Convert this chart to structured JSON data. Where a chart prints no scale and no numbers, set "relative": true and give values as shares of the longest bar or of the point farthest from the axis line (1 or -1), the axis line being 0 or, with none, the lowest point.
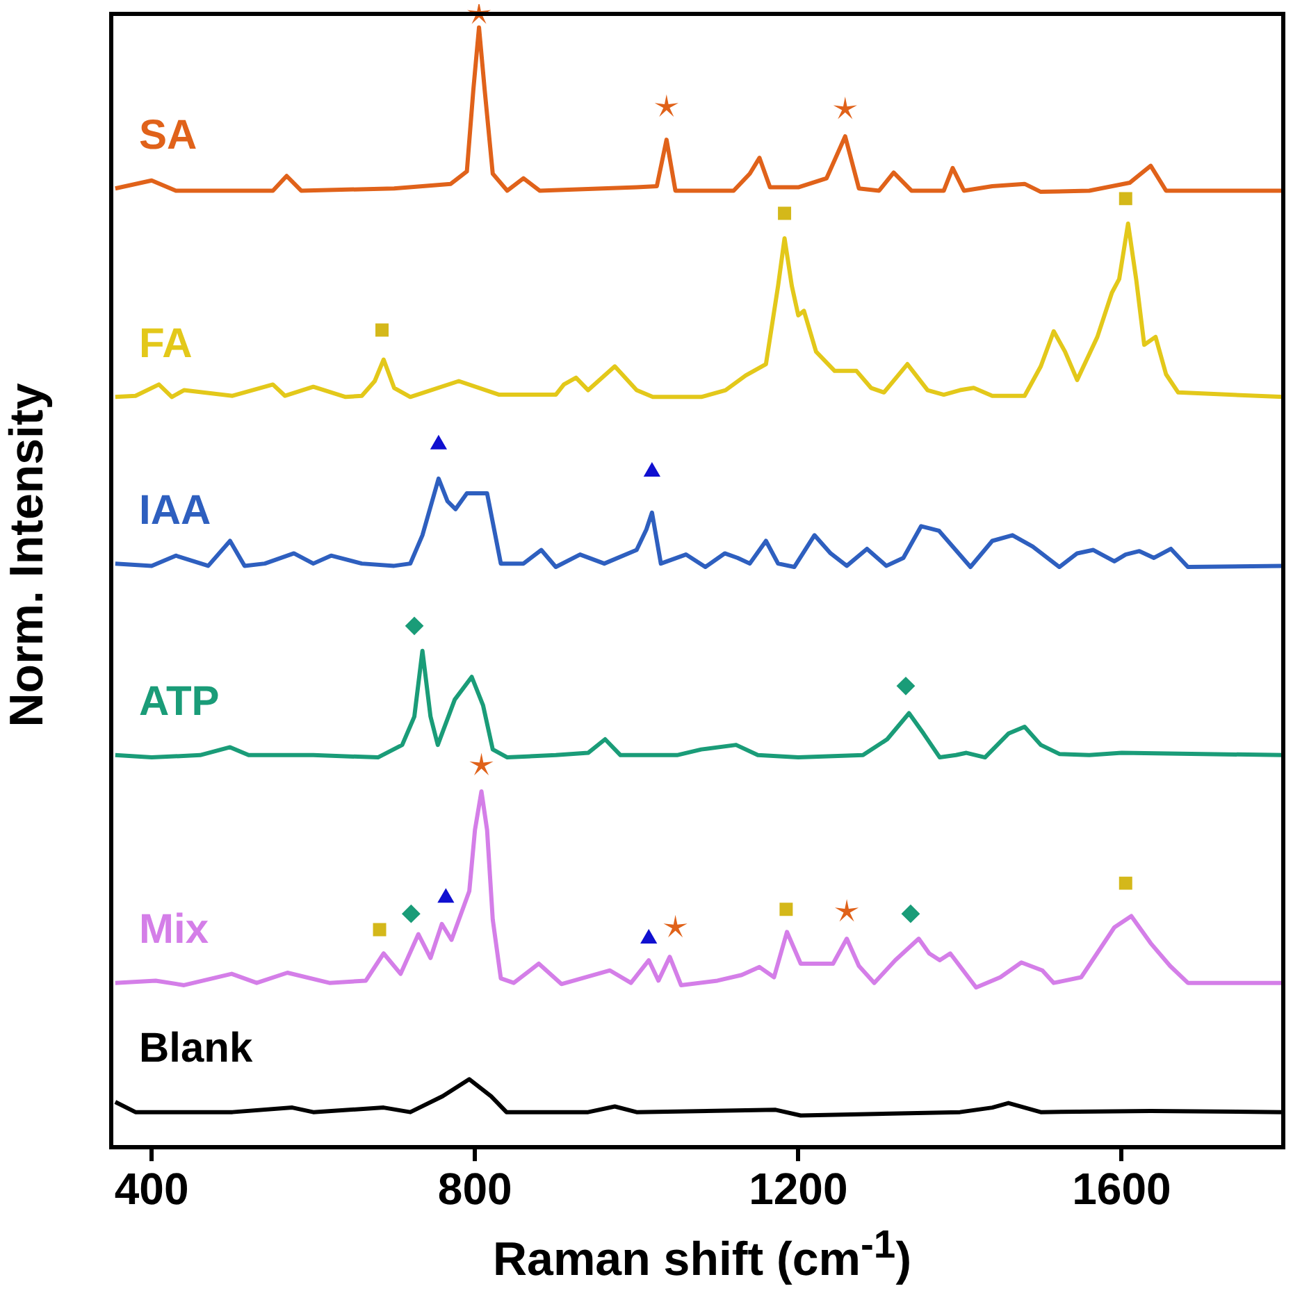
{
  "chart_data": {
    "type": "line",
    "relative": true,
    "xlabel": "Raman shift (cm$^{-1}$)",
    "ylabel": "Norm. Intensity",
    "xlim": [
      350,
      1800
    ],
    "xticks": [
      400,
      800,
      1200,
      1600
    ],
    "grid": false,
    "legend": false,
    "marker": "none",
    "line_style": "solid",
    "series": [
      {
        "name": "SA",
        "color": "#e0621a",
        "x": [
          355,
          400,
          430,
          550,
          567,
          585,
          700,
          770,
          790,
          798,
          805,
          812,
          822,
          840,
          860,
          880,
          1000,
          1025,
          1037,
          1048,
          1120,
          1140,
          1152,
          1165,
          1200,
          1235,
          1258,
          1275,
          1300,
          1318,
          1340,
          1380,
          1391,
          1405,
          1440,
          1480,
          1500,
          1560,
          1610,
          1636,
          1655,
          1800
        ],
        "values": [
          0.846,
          0.853,
          0.844,
          0.844,
          0.857,
          0.844,
          0.846,
          0.85,
          0.861,
          0.933,
          0.988,
          0.933,
          0.859,
          0.844,
          0.855,
          0.844,
          0.847,
          0.848,
          0.889,
          0.844,
          0.844,
          0.859,
          0.873,
          0.847,
          0.847,
          0.855,
          0.892,
          0.846,
          0.844,
          0.86,
          0.844,
          0.844,
          0.864,
          0.844,
          0.848,
          0.85,
          0.843,
          0.844,
          0.851,
          0.866,
          0.844,
          0.844
        ]
      },
      {
        "name": "FA",
        "color": "#e3c81a",
        "x": [
          355,
          380,
          409,
          425,
          440,
          500,
          550,
          565,
          600,
          640,
          660,
          676,
          687,
          700,
          720,
          780,
          830,
          900,
          910,
          925,
          940,
          973,
          1000,
          1020,
          1080,
          1110,
          1135,
          1160,
          1175,
          1183,
          1192,
          1200,
          1207,
          1222,
          1245,
          1272,
          1290,
          1306,
          1335,
          1360,
          1380,
          1400,
          1417,
          1440,
          1480,
          1500,
          1516,
          1530,
          1545,
          1570,
          1588,
          1597,
          1608,
          1618,
          1628,
          1642,
          1655,
          1670,
          1800
        ],
        "values": [
          0.662,
          0.663,
          0.673,
          0.662,
          0.668,
          0.663,
          0.673,
          0.663,
          0.671,
          0.662,
          0.663,
          0.676,
          0.695,
          0.67,
          0.662,
          0.676,
          0.664,
          0.664,
          0.673,
          0.679,
          0.668,
          0.689,
          0.668,
          0.662,
          0.662,
          0.668,
          0.681,
          0.691,
          0.76,
          0.802,
          0.76,
          0.734,
          0.738,
          0.702,
          0.685,
          0.685,
          0.67,
          0.666,
          0.691,
          0.668,
          0.664,
          0.668,
          0.67,
          0.663,
          0.663,
          0.689,
          0.72,
          0.702,
          0.677,
          0.715,
          0.754,
          0.766,
          0.815,
          0.766,
          0.708,
          0.715,
          0.682,
          0.666,
          0.662
        ]
      },
      {
        "name": "IAA",
        "color": "#2e5fbf",
        "x": [
          355,
          400,
          430,
          470,
          497,
          515,
          540,
          576,
          600,
          622,
          660,
          700,
          720,
          735,
          755,
          766,
          776,
          790,
          815,
          832,
          860,
          882,
          900,
          930,
          960,
          1000,
          1012,
          1019,
          1030,
          1061,
          1085,
          1109,
          1125,
          1140,
          1160,
          1175,
          1195,
          1220,
          1240,
          1260,
          1285,
          1309,
          1330,
          1352,
          1374,
          1413,
          1440,
          1465,
          1490,
          1523,
          1545,
          1565,
          1591,
          1605,
          1622,
          1640,
          1661,
          1682,
          1800
        ],
        "values": [
          0.515,
          0.513,
          0.522,
          0.513,
          0.535,
          0.513,
          0.515,
          0.524,
          0.515,
          0.522,
          0.515,
          0.513,
          0.515,
          0.54,
          0.59,
          0.57,
          0.563,
          0.577,
          0.577,
          0.515,
          0.515,
          0.527,
          0.512,
          0.523,
          0.515,
          0.527,
          0.545,
          0.56,
          0.515,
          0.523,
          0.512,
          0.524,
          0.52,
          0.515,
          0.535,
          0.515,
          0.512,
          0.54,
          0.524,
          0.513,
          0.528,
          0.513,
          0.52,
          0.548,
          0.544,
          0.512,
          0.535,
          0.54,
          0.53,
          0.512,
          0.524,
          0.527,
          0.517,
          0.523,
          0.526,
          0.52,
          0.528,
          0.512,
          0.513
        ]
      },
      {
        "name": "ATP",
        "color": "#1a9c78",
        "x": [
          355,
          400,
          460,
          497,
          520,
          600,
          680,
          710,
          725,
          735,
          745,
          754,
          775,
          796,
          810,
          822,
          840,
          900,
          940,
          961,
          980,
          1050,
          1080,
          1123,
          1150,
          1200,
          1280,
          1310,
          1337,
          1355,
          1375,
          1395,
          1408,
          1431,
          1460,
          1480,
          1500,
          1523,
          1560,
          1600,
          1800
        ],
        "values": [
          0.346,
          0.344,
          0.346,
          0.353,
          0.346,
          0.346,
          0.344,
          0.355,
          0.38,
          0.438,
          0.38,
          0.355,
          0.395,
          0.415,
          0.39,
          0.351,
          0.344,
          0.346,
          0.348,
          0.36,
          0.346,
          0.346,
          0.351,
          0.355,
          0.346,
          0.344,
          0.346,
          0.36,
          0.383,
          0.365,
          0.344,
          0.346,
          0.348,
          0.344,
          0.365,
          0.371,
          0.355,
          0.347,
          0.346,
          0.348,
          0.346
        ]
      },
      {
        "name": "Mix",
        "color": "#d47ee8",
        "x": [
          355,
          405,
          440,
          499,
          530,
          568,
          620,
          665,
          687,
          708,
          730,
          745,
          759,
          771,
          793,
          800,
          808,
          815,
          822,
          832,
          848,
          879,
          907,
          967,
          993,
          1015,
          1027,
          1041,
          1055,
          1100,
          1130,
          1152,
          1170,
          1186,
          1203,
          1243,
          1260,
          1275,
          1294,
          1320,
          1349,
          1362,
          1375,
          1388,
          1420,
          1450,
          1476,
          1502,
          1516,
          1550,
          1591,
          1612,
          1636,
          1660,
          1682,
          1800
        ],
        "values": [
          0.145,
          0.147,
          0.143,
          0.153,
          0.145,
          0.154,
          0.145,
          0.147,
          0.171,
          0.153,
          0.188,
          0.167,
          0.197,
          0.183,
          0.226,
          0.28,
          0.314,
          0.28,
          0.201,
          0.149,
          0.145,
          0.162,
          0.144,
          0.156,
          0.145,
          0.165,
          0.147,
          0.168,
          0.143,
          0.147,
          0.152,
          0.159,
          0.15,
          0.19,
          0.162,
          0.162,
          0.184,
          0.16,
          0.145,
          0.165,
          0.184,
          0.171,
          0.165,
          0.171,
          0.141,
          0.15,
          0.163,
          0.156,
          0.145,
          0.15,
          0.194,
          0.204,
          0.18,
          0.16,
          0.145,
          0.145
        ]
      },
      {
        "name": "Blank",
        "color": "#000000",
        "x": [
          355,
          380,
          500,
          574,
          600,
          687,
          720,
          760,
          793,
          820,
          839,
          940,
          973,
          1000,
          1172,
          1203,
          1400,
          1440,
          1460,
          1500,
          1636,
          1800
        ],
        "values": [
          0.04,
          0.031,
          0.031,
          0.035,
          0.031,
          0.035,
          0.031,
          0.045,
          0.06,
          0.045,
          0.031,
          0.031,
          0.036,
          0.031,
          0.033,
          0.028,
          0.031,
          0.035,
          0.039,
          0.031,
          0.032,
          0.031
        ]
      },
      {
        "type": "scatter",
        "marker": "star",
        "color": "#e0621a",
        "x": [
          805,
          1037,
          1258,
          808,
          1048,
          1260
        ],
        "values": [
          1.0,
          0.918,
          0.916,
          0.337,
          0.194,
          0.208
        ]
      },
      {
        "type": "scatter",
        "marker": "square",
        "color": "#d4b81a",
        "x": [
          685,
          1183,
          1605,
          682,
          1185,
          1605
        ],
        "values": [
          0.721,
          0.824,
          0.837,
          0.192,
          0.21,
          0.233
        ]
      },
      {
        "type": "scatter",
        "marker": "triangle",
        "color": "#1010d0",
        "x": [
          755,
          1019,
          764,
          1015
        ],
        "values": [
          0.62,
          0.596,
          0.22,
          0.184
        ]
      },
      {
        "type": "scatter",
        "marker": "diamond",
        "color": "#1a9c78",
        "x": [
          725,
          1333,
          721,
          1339
        ],
        "values": [
          0.46,
          0.407,
          0.206,
          0.206
        ]
      }
    ]
  }
}
